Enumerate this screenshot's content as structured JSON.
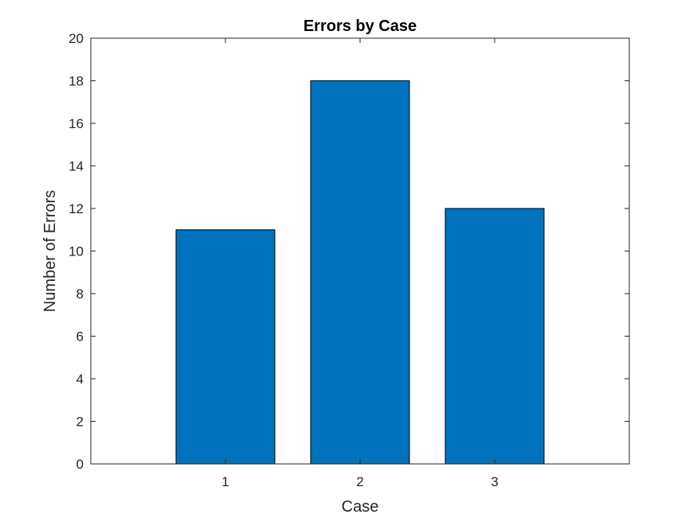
{
  "chart_data": {
    "type": "bar",
    "title": "Errors by Case",
    "xlabel": "Case",
    "ylabel": "Number of Errors",
    "categories": [
      "1",
      "2",
      "3"
    ],
    "x": [
      1,
      2,
      3
    ],
    "values": [
      11,
      18,
      12
    ],
    "xlim": [
      0,
      4
    ],
    "ylim": [
      0,
      20
    ],
    "yticks": [
      0,
      2,
      4,
      6,
      8,
      10,
      12,
      14,
      16,
      18,
      20
    ],
    "yticklabels": [
      "0",
      "2",
      "4",
      "6",
      "8",
      "10",
      "12",
      "14",
      "16",
      "18",
      "20"
    ],
    "grid": false,
    "legend": "none",
    "bar_color": "#0072BD",
    "bar_edge_color": "#000000",
    "axes_color": "#262626"
  }
}
